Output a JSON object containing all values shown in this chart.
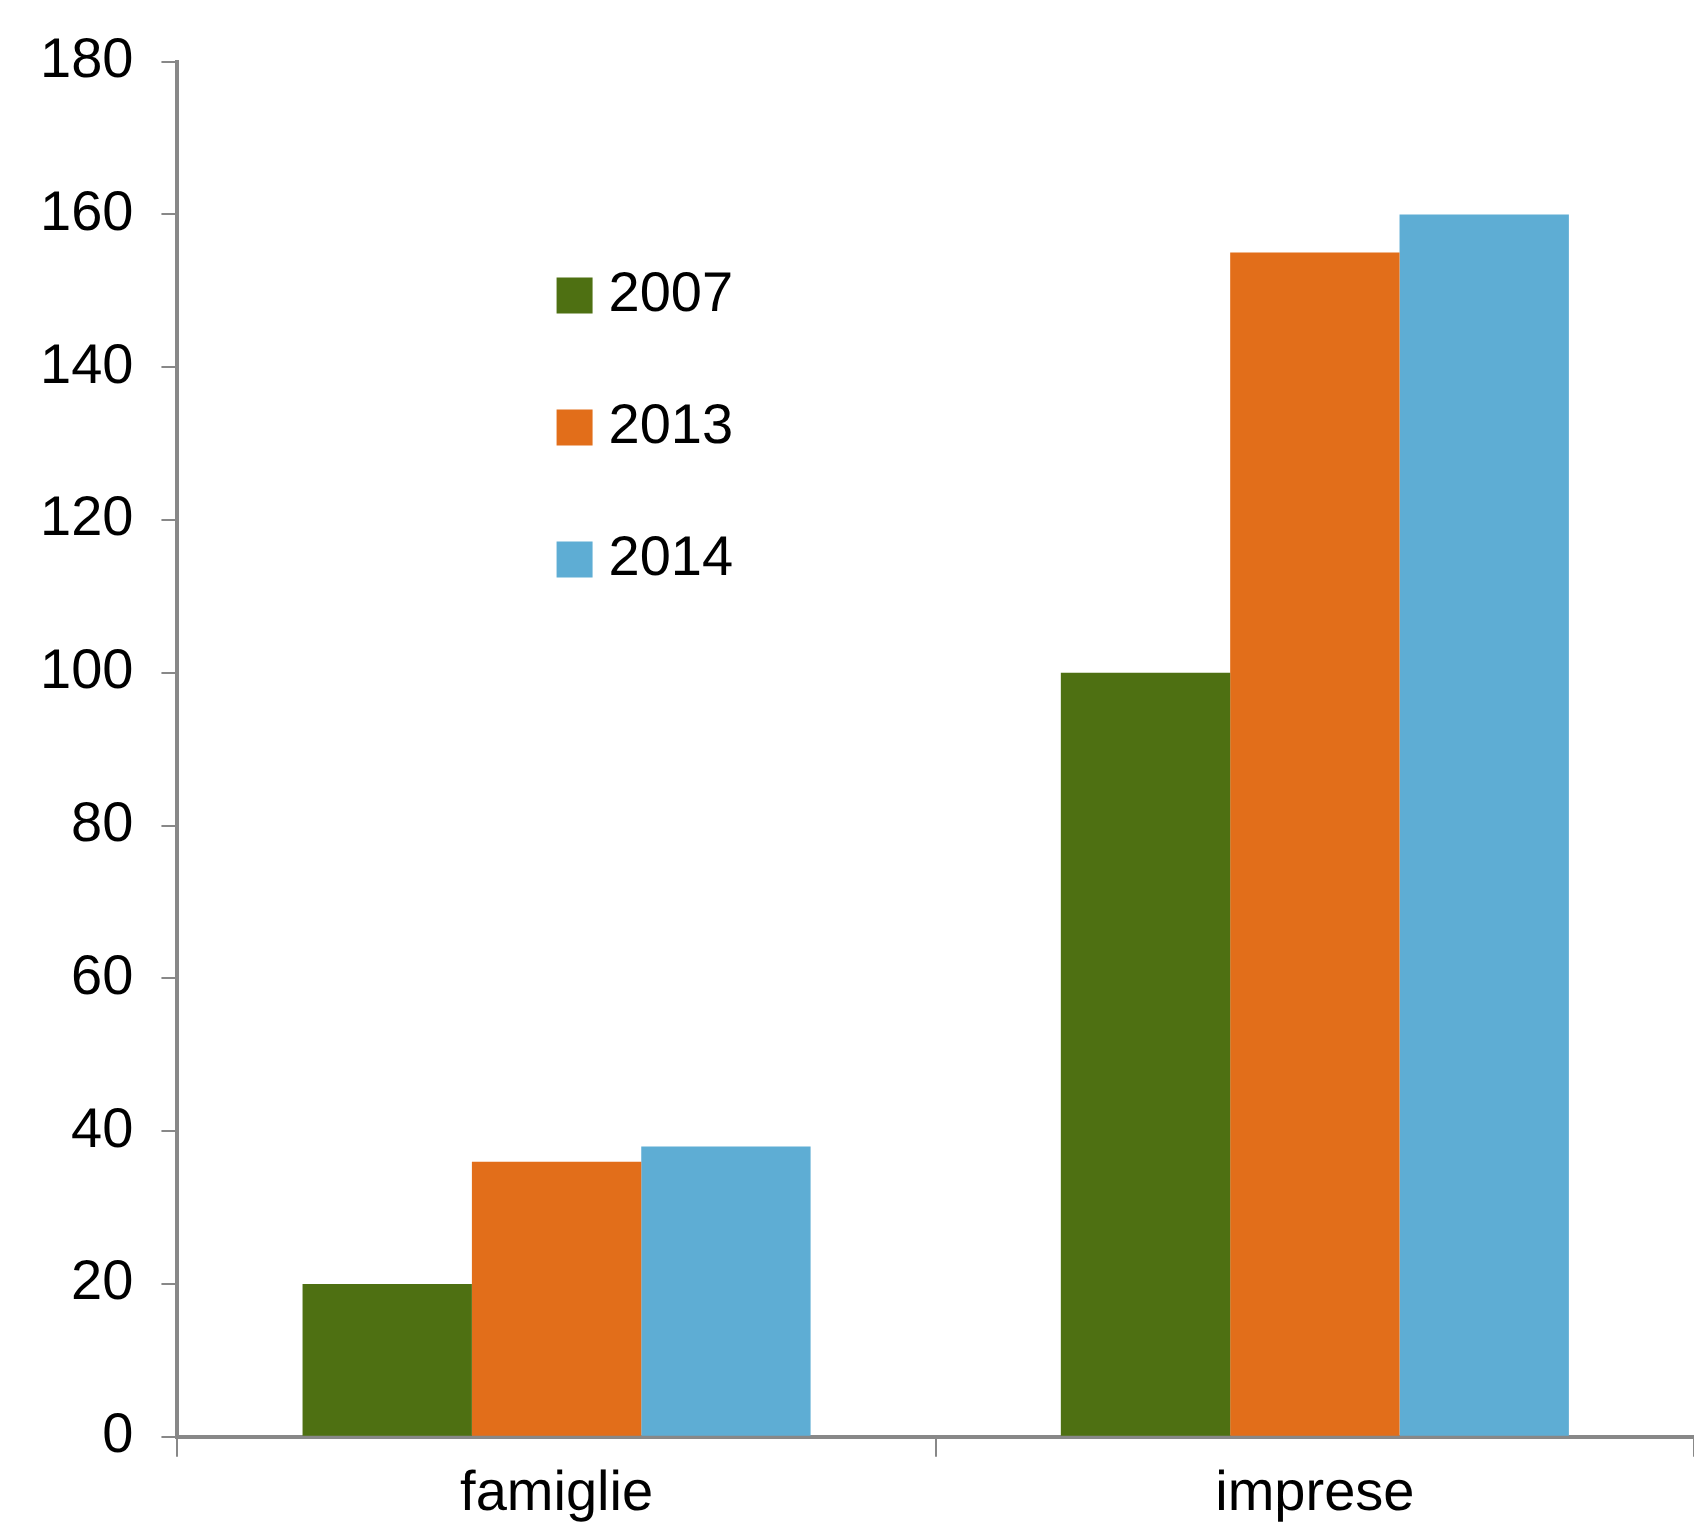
{
  "chart_data": {
    "type": "bar",
    "categories": [
      "famiglie",
      "imprese"
    ],
    "series": [
      {
        "name": "2007",
        "color": "#4e7012",
        "values": [
          20,
          100
        ]
      },
      {
        "name": "2013",
        "color": "#e26e1a",
        "values": [
          36,
          155
        ]
      },
      {
        "name": "2014",
        "color": "#5eadd4",
        "values": [
          38,
          160
        ]
      }
    ],
    "ylim": [
      0,
      180
    ],
    "yticks": [
      0,
      20,
      40,
      60,
      80,
      100,
      120,
      140,
      160,
      180
    ],
    "grid": false,
    "legend": "top left"
  }
}
